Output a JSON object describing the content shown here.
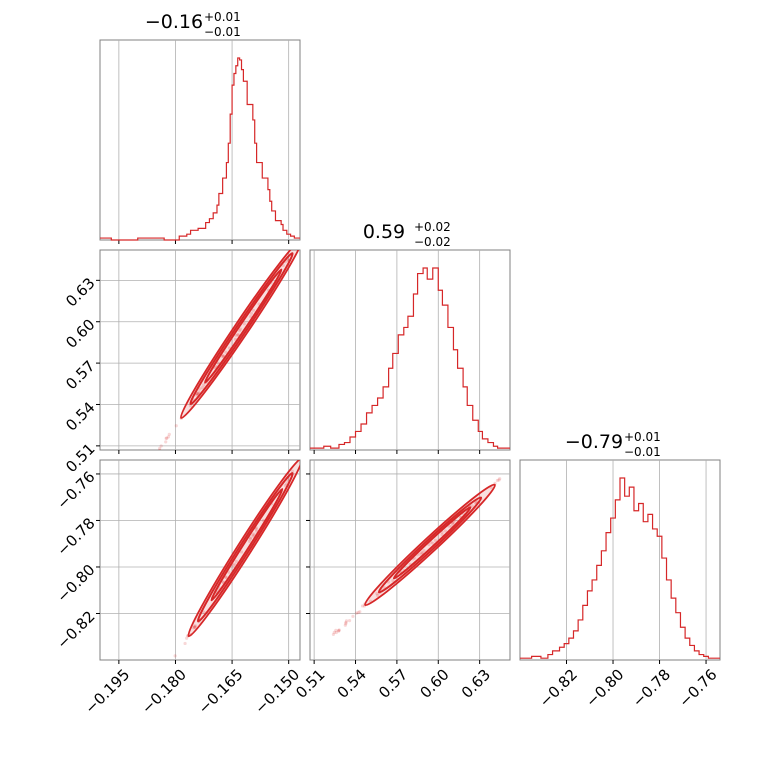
{
  "chart_data": {
    "type": "corner",
    "parameters": [
      {
        "name": "",
        "range": [
          -0.2,
          -0.147
        ],
        "ticks": [
          -0.195,
          -0.18,
          -0.165,
          -0.15
        ],
        "tick_labels": [
          "−0.195",
          "−0.180",
          "−0.165",
          "−0.150"
        ],
        "title": {
          "median": "−0.16",
          "plus": "+0.01",
          "minus": "−0.01"
        },
        "hist_bins": [
          -0.2,
          -0.197,
          -0.19,
          -0.183,
          -0.179,
          -0.177,
          -0.176,
          -0.174,
          -0.172,
          -0.171,
          -0.17,
          -0.169,
          -0.1685,
          -0.1675,
          -0.1665,
          -0.166,
          -0.1655,
          -0.165,
          -0.1645,
          -0.164,
          -0.1635,
          -0.163,
          -0.1625,
          -0.162,
          -0.161,
          -0.1595,
          -0.159,
          -0.1585,
          -0.157,
          -0.1555,
          -0.155,
          -0.1545,
          -0.1535,
          -0.152,
          -0.1515,
          -0.1505,
          -0.1495,
          -0.1485,
          -0.147
        ],
        "hist_counts": [
          1,
          0,
          1,
          0,
          2,
          3,
          5,
          6,
          9,
          11,
          14,
          18,
          24,
          32,
          40,
          50,
          65,
          80,
          86,
          90,
          94,
          93,
          88,
          82,
          70,
          62,
          50,
          40,
          32,
          26,
          20,
          15,
          10,
          8,
          5,
          3,
          2,
          1
        ]
      },
      {
        "name": "",
        "range": [
          0.507,
          0.652
        ],
        "ticks": [
          0.51,
          0.54,
          0.57,
          0.6,
          0.63
        ],
        "tick_labels": [
          "0.51",
          "0.54",
          "0.57",
          "0.60",
          "0.63"
        ],
        "title": {
          "median": "0.59",
          "plus": "+0.02",
          "minus": "−0.02"
        },
        "hist_bins": [
          0.507,
          0.517,
          0.522,
          0.528,
          0.532,
          0.536,
          0.54,
          0.544,
          0.548,
          0.552,
          0.556,
          0.56,
          0.564,
          0.567,
          0.571,
          0.575,
          0.578,
          0.582,
          0.585,
          0.589,
          0.592,
          0.596,
          0.6,
          0.603,
          0.607,
          0.611,
          0.614,
          0.618,
          0.621,
          0.625,
          0.629,
          0.632,
          0.636,
          0.64,
          0.643,
          0.652
        ],
        "hist_counts": [
          1,
          2,
          1,
          3,
          4,
          7,
          10,
          14,
          20,
          24,
          28,
          34,
          44,
          52,
          62,
          66,
          72,
          84,
          95,
          98,
          92,
          98,
          86,
          78,
          66,
          54,
          44,
          34,
          24,
          16,
          10,
          6,
          4,
          2,
          1
        ]
      },
      {
        "name": "",
        "range": [
          -0.84,
          -0.754
        ],
        "ticks": [
          -0.82,
          -0.8,
          -0.78,
          -0.76
        ],
        "tick_labels": [
          "−0.82",
          "−0.80",
          "−0.78",
          "−0.76"
        ],
        "title": {
          "median": "−0.79",
          "plus": "+0.01",
          "minus": "−0.01"
        },
        "hist_bins": [
          -0.84,
          -0.835,
          -0.831,
          -0.828,
          -0.826,
          -0.823,
          -0.821,
          -0.819,
          -0.817,
          -0.815,
          -0.813,
          -0.811,
          -0.809,
          -0.807,
          -0.805,
          -0.803,
          -0.801,
          -0.799,
          -0.797,
          -0.795,
          -0.793,
          -0.791,
          -0.789,
          -0.787,
          -0.785,
          -0.783,
          -0.781,
          -0.779,
          -0.777,
          -0.775,
          -0.773,
          -0.771,
          -0.769,
          -0.767,
          -0.765,
          -0.763,
          -0.761,
          -0.759,
          -0.757,
          -0.754
        ],
        "hist_counts": [
          1,
          2,
          1,
          3,
          5,
          7,
          9,
          12,
          16,
          22,
          30,
          38,
          44,
          52,
          60,
          70,
          78,
          88,
          100,
          90,
          95,
          82,
          86,
          76,
          80,
          72,
          68,
          56,
          44,
          34,
          26,
          18,
          12,
          8,
          5,
          3,
          2,
          1,
          1
        ]
      }
    ],
    "pairs": [
      {
        "x_param": 0,
        "y_param": 1,
        "center": [
          -0.1625,
          0.595
        ],
        "slope": 4.05,
        "core_half_length": 0.0135,
        "outer_half_length": 0.016,
        "tail_x": [
          -0.195,
          -0.148
        ]
      },
      {
        "x_param": 0,
        "y_param": 2,
        "center": [
          -0.1615,
          -0.7915
        ],
        "slope": 2.55,
        "core_half_length": 0.0125,
        "outer_half_length": 0.015,
        "tail_x": [
          -0.195,
          -0.1485
        ]
      },
      {
        "x_param": 1,
        "y_param": 2,
        "center": [
          0.594,
          -0.7905
        ],
        "slope": 0.55,
        "core_half_length": 0.037,
        "outer_half_length": 0.047,
        "tail_x": [
          0.522,
          0.648
        ]
      }
    ],
    "grid": true,
    "color": "#d62728"
  }
}
